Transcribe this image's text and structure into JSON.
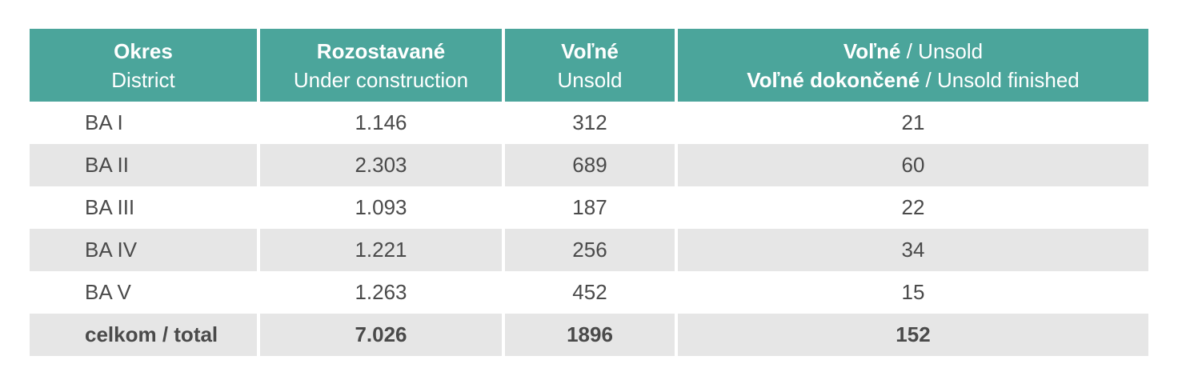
{
  "header": {
    "col1": {
      "bold": "Okres",
      "sub": "District"
    },
    "col2": {
      "bold": "Rozostavané",
      "sub": "Under construction"
    },
    "col3": {
      "bold": "Voľné",
      "sub": "Unsold"
    },
    "col4": {
      "line1_bold": "Voľné",
      "line1_rest": " / Unsold",
      "line2_bold": "Voľné dokončené",
      "line2_rest": " / Unsold finished"
    }
  },
  "rows": [
    {
      "district": "BA I",
      "under_construction": "1.146",
      "unsold": "312",
      "unsold_finished": "21"
    },
    {
      "district": "BA II",
      "under_construction": "2.303",
      "unsold": "689",
      "unsold_finished": "60"
    },
    {
      "district": "BA III",
      "under_construction": "1.093",
      "unsold": "187",
      "unsold_finished": "22"
    },
    {
      "district": "BA IV",
      "under_construction": "1.221",
      "unsold": "256",
      "unsold_finished": "34"
    },
    {
      "district": "BA V",
      "under_construction": "1.263",
      "unsold": "452",
      "unsold_finished": "15"
    }
  ],
  "total": {
    "label": "celkom / total",
    "under_construction": "7.026",
    "unsold": "1896",
    "unsold_finished": "152"
  },
  "colors": {
    "header_bg": "#4ba59b",
    "shaded_row": "#e6e6e6",
    "text": "#4a4a4a"
  }
}
